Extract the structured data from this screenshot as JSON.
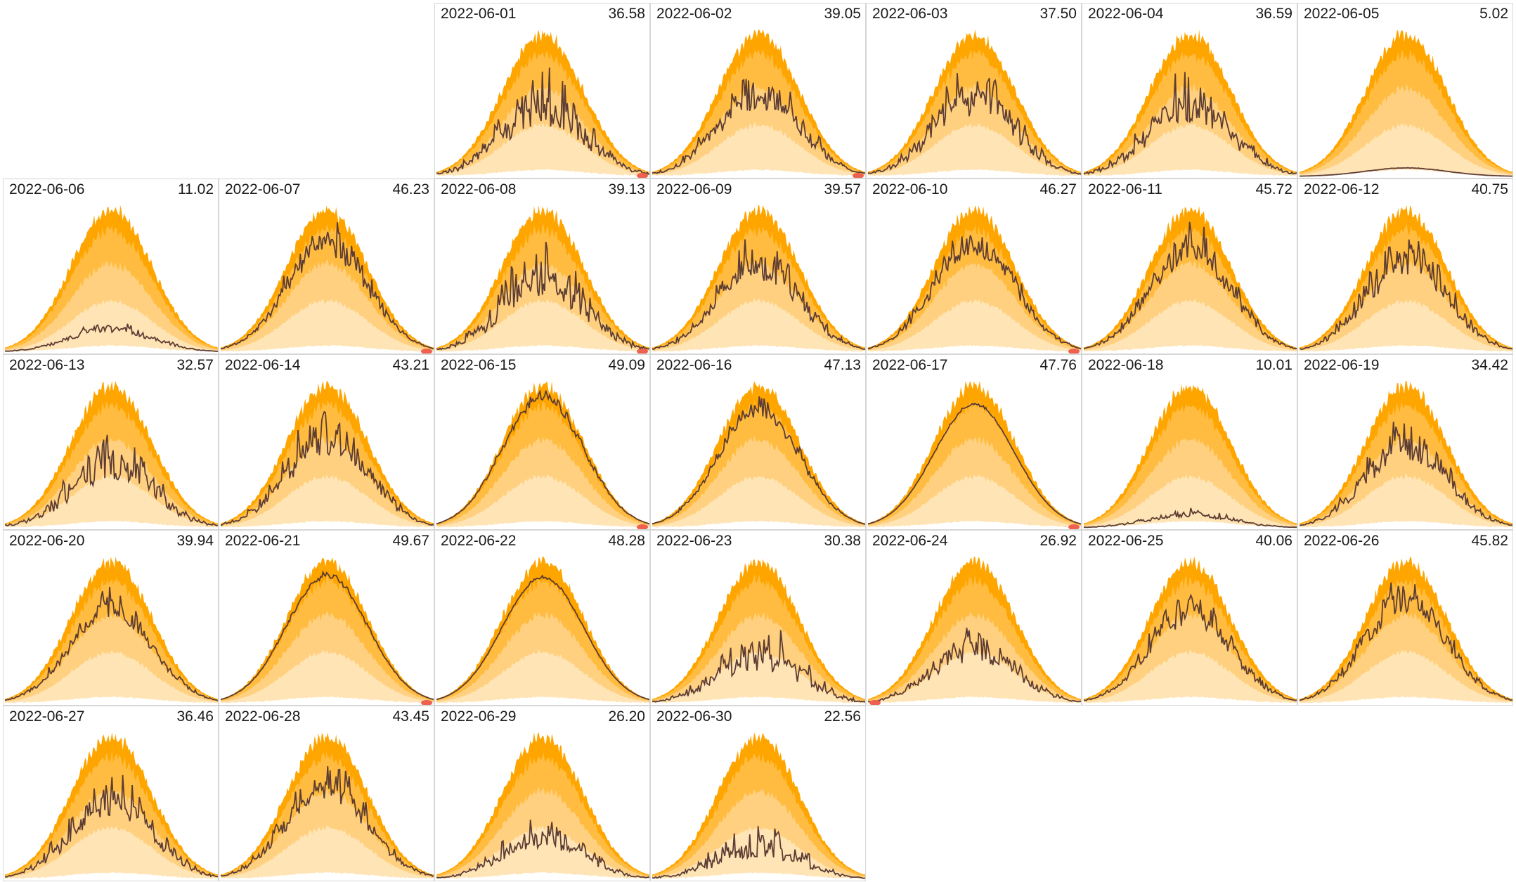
{
  "chart_data": {
    "type": "area",
    "layout": "calendar grid, 7 columns, month starting on 3rd column",
    "description_series": [
      "p10 band",
      "p25 band",
      "p50 band",
      "p75 band",
      "p90 band",
      "actual production line"
    ],
    "colors": {
      "band_outer": "#ffa500",
      "band_mid": "#ffbc40",
      "band_inner": "#ffd07f",
      "band_core": "#ffe4b5",
      "baseline": "#ffffff",
      "actual_line": "#5c3c33",
      "marker": "#f0604e",
      "grid_border": "#d6d6d6"
    },
    "days": [
      {
        "date": "2022-06-01",
        "total": "36.58",
        "col": 2,
        "row": 0,
        "ratio": 0.78,
        "vol": 0.4,
        "seed": 11,
        "marker": true
      },
      {
        "date": "2022-06-02",
        "total": "39.05",
        "col": 3,
        "row": 0,
        "ratio": 0.82,
        "vol": 0.32,
        "seed": 12,
        "marker": true
      },
      {
        "date": "2022-06-03",
        "total": "37.50",
        "col": 4,
        "row": 0,
        "ratio": 0.8,
        "vol": 0.35,
        "seed": 13,
        "marker": false
      },
      {
        "date": "2022-06-04",
        "total": "36.59",
        "col": 5,
        "row": 0,
        "ratio": 0.78,
        "vol": 0.38,
        "seed": 14,
        "marker": false
      },
      {
        "date": "2022-06-05",
        "total": "5.02",
        "col": 6,
        "row": 0,
        "ratio": 0.06,
        "vol": 0.05,
        "seed": 15,
        "marker": false
      },
      {
        "date": "2022-06-06",
        "total": "11.02",
        "col": 0,
        "row": 1,
        "ratio": 0.22,
        "vol": 0.3,
        "seed": 16,
        "marker": false
      },
      {
        "date": "2022-06-07",
        "total": "46.23",
        "col": 1,
        "row": 1,
        "ratio": 0.93,
        "vol": 0.22,
        "seed": 17,
        "marker": true
      },
      {
        "date": "2022-06-08",
        "total": "39.13",
        "col": 2,
        "row": 1,
        "ratio": 0.82,
        "vol": 0.4,
        "seed": 18,
        "marker": true
      },
      {
        "date": "2022-06-09",
        "total": "39.57",
        "col": 3,
        "row": 1,
        "ratio": 0.83,
        "vol": 0.3,
        "seed": 19,
        "marker": false
      },
      {
        "date": "2022-06-10",
        "total": "46.27",
        "col": 4,
        "row": 1,
        "ratio": 0.93,
        "vol": 0.22,
        "seed": 20,
        "marker": true
      },
      {
        "date": "2022-06-11",
        "total": "45.72",
        "col": 5,
        "row": 1,
        "ratio": 0.92,
        "vol": 0.25,
        "seed": 21,
        "marker": false
      },
      {
        "date": "2022-06-12",
        "total": "40.75",
        "col": 6,
        "row": 1,
        "ratio": 0.86,
        "vol": 0.3,
        "seed": 22,
        "marker": false
      },
      {
        "date": "2022-06-13",
        "total": "32.57",
        "col": 0,
        "row": 2,
        "ratio": 0.7,
        "vol": 0.4,
        "seed": 23,
        "marker": false
      },
      {
        "date": "2022-06-14",
        "total": "43.21",
        "col": 1,
        "row": 2,
        "ratio": 0.88,
        "vol": 0.32,
        "seed": 24,
        "marker": false
      },
      {
        "date": "2022-06-15",
        "total": "49.09",
        "col": 2,
        "row": 2,
        "ratio": 0.96,
        "vol": 0.08,
        "seed": 25,
        "marker": true
      },
      {
        "date": "2022-06-16",
        "total": "47.13",
        "col": 3,
        "row": 2,
        "ratio": 0.93,
        "vol": 0.14,
        "seed": 26,
        "marker": false
      },
      {
        "date": "2022-06-17",
        "total": "47.76",
        "col": 4,
        "row": 2,
        "ratio": 0.85,
        "vol": 0.02,
        "seed": 27,
        "marker": true
      },
      {
        "date": "2022-06-18",
        "total": "10.01",
        "col": 5,
        "row": 2,
        "ratio": 0.14,
        "vol": 0.35,
        "seed": 28,
        "marker": false
      },
      {
        "date": "2022-06-19",
        "total": "34.42",
        "col": 6,
        "row": 2,
        "ratio": 0.78,
        "vol": 0.3,
        "seed": 29,
        "marker": false
      },
      {
        "date": "2022-06-20",
        "total": "39.94",
        "col": 0,
        "row": 3,
        "ratio": 0.83,
        "vol": 0.22,
        "seed": 30,
        "marker": false
      },
      {
        "date": "2022-06-21",
        "total": "49.67",
        "col": 1,
        "row": 3,
        "ratio": 0.9,
        "vol": 0.04,
        "seed": 31,
        "marker": true
      },
      {
        "date": "2022-06-22",
        "total": "48.28",
        "col": 2,
        "row": 3,
        "ratio": 0.87,
        "vol": 0.02,
        "seed": 32,
        "marker": false
      },
      {
        "date": "2022-06-23",
        "total": "30.38",
        "col": 3,
        "row": 3,
        "ratio": 0.6,
        "vol": 0.45,
        "seed": 33,
        "marker": false
      },
      {
        "date": "2022-06-24",
        "total": "26.92",
        "col": 4,
        "row": 3,
        "ratio": 0.55,
        "vol": 0.35,
        "seed": 34,
        "marker": true
      },
      {
        "date": "2022-06-25",
        "total": "40.06",
        "col": 5,
        "row": 3,
        "ratio": 0.82,
        "vol": 0.25,
        "seed": 35,
        "marker": false
      },
      {
        "date": "2022-06-26",
        "total": "45.82",
        "col": 6,
        "row": 3,
        "ratio": 0.93,
        "vol": 0.25,
        "seed": 36,
        "marker": false
      },
      {
        "date": "2022-06-27",
        "total": "36.46",
        "col": 0,
        "row": 4,
        "ratio": 0.78,
        "vol": 0.35,
        "seed": 37,
        "marker": false
      },
      {
        "date": "2022-06-28",
        "total": "43.45",
        "col": 1,
        "row": 4,
        "ratio": 0.88,
        "vol": 0.28,
        "seed": 38,
        "marker": false
      },
      {
        "date": "2022-06-29",
        "total": "26.20",
        "col": 2,
        "row": 4,
        "ratio": 0.45,
        "vol": 0.4,
        "seed": 39,
        "marker": false
      },
      {
        "date": "2022-06-30",
        "total": "22.56",
        "col": 3,
        "row": 4,
        "ratio": 0.4,
        "vol": 0.45,
        "seed": 40,
        "marker": false
      }
    ]
  }
}
